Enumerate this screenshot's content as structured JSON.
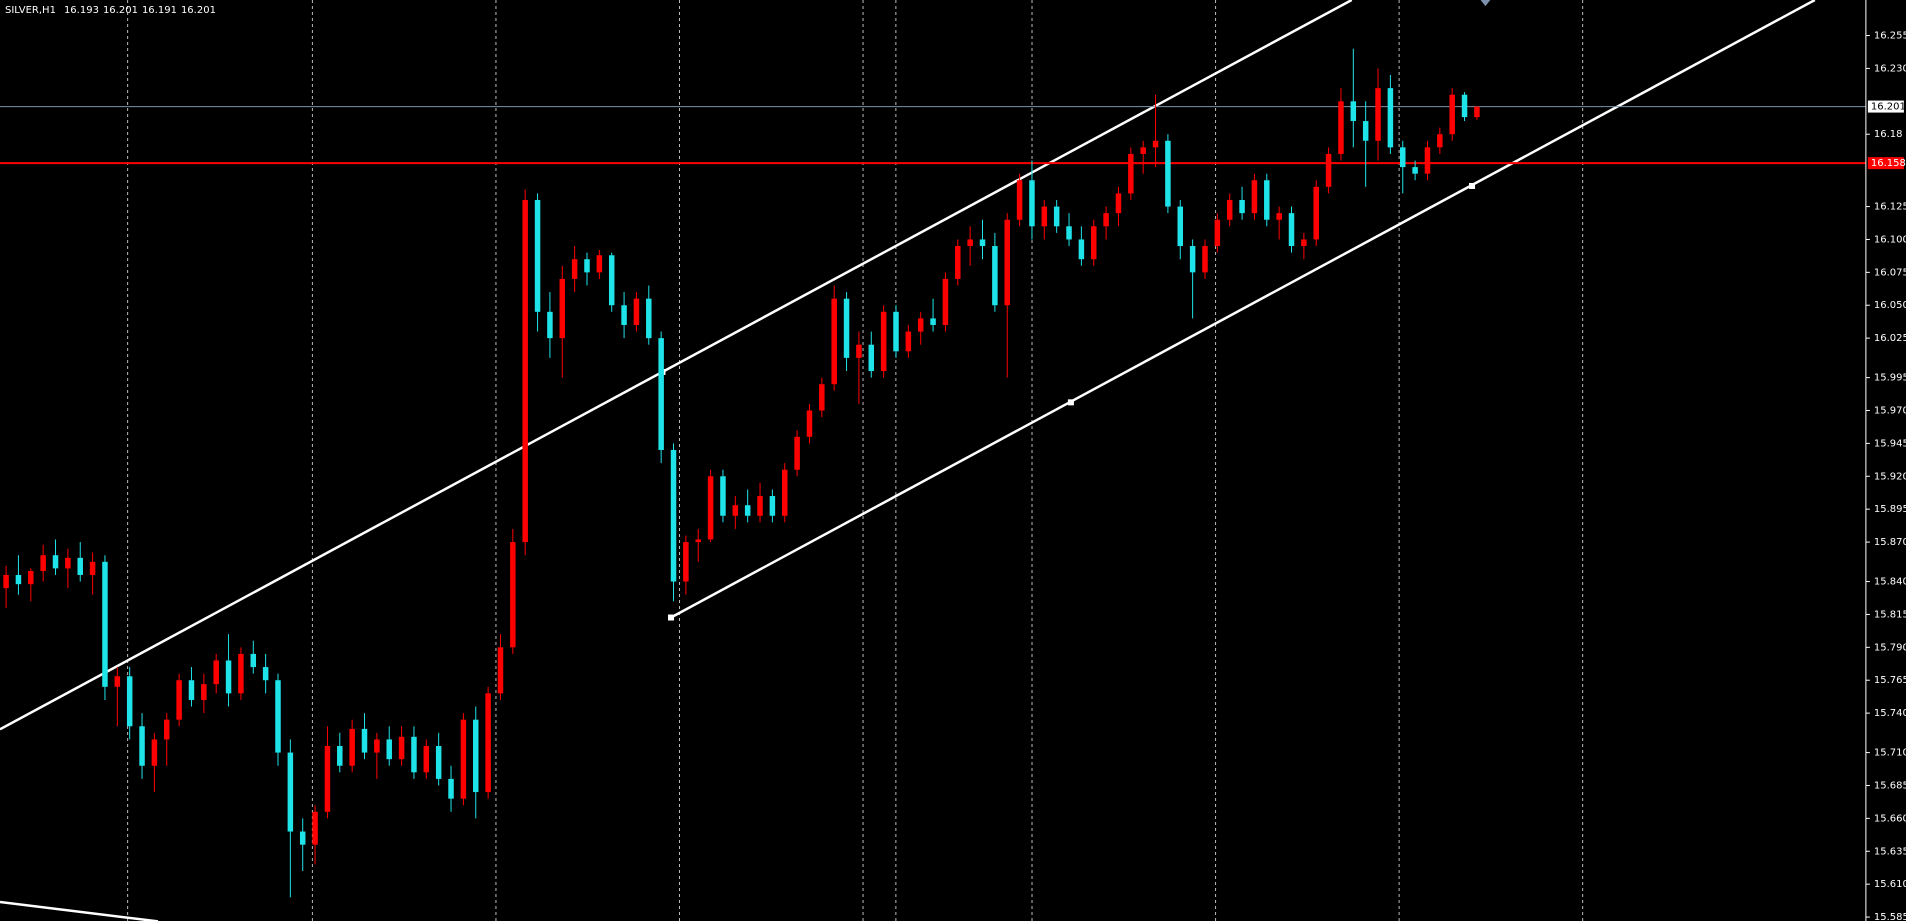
{
  "chart_data": {
    "type": "candlestick",
    "title": "SILVER,H1",
    "ohlc": [
      [
        15.835,
        15.852,
        15.82,
        15.845
      ],
      [
        15.845,
        15.86,
        15.83,
        15.838
      ],
      [
        15.838,
        15.85,
        15.825,
        15.848
      ],
      [
        15.848,
        15.868,
        15.84,
        15.86
      ],
      [
        15.86,
        15.872,
        15.845,
        15.85
      ],
      [
        15.85,
        15.865,
        15.835,
        15.858
      ],
      [
        15.858,
        15.87,
        15.84,
        15.845
      ],
      [
        15.845,
        15.862,
        15.83,
        15.855
      ],
      [
        15.855,
        15.86,
        15.75,
        15.76
      ],
      [
        15.76,
        15.775,
        15.73,
        15.768
      ],
      [
        15.768,
        15.775,
        15.72,
        15.73
      ],
      [
        15.73,
        15.74,
        15.69,
        15.7
      ],
      [
        15.7,
        15.725,
        15.68,
        15.72
      ],
      [
        15.72,
        15.74,
        15.7,
        15.735
      ],
      [
        15.735,
        15.77,
        15.73,
        15.765
      ],
      [
        15.765,
        15.775,
        15.745,
        15.75
      ],
      [
        15.75,
        15.77,
        15.74,
        15.762
      ],
      [
        15.762,
        15.785,
        15.755,
        15.78
      ],
      [
        15.78,
        15.8,
        15.745,
        15.755
      ],
      [
        15.755,
        15.79,
        15.75,
        15.785
      ],
      [
        15.785,
        15.795,
        15.77,
        15.775
      ],
      [
        15.775,
        15.785,
        15.755,
        15.765
      ],
      [
        15.765,
        15.77,
        15.7,
        15.71
      ],
      [
        15.71,
        15.72,
        15.6,
        15.65
      ],
      [
        15.65,
        15.66,
        15.62,
        15.64
      ],
      [
        15.64,
        15.67,
        15.625,
        15.665
      ],
      [
        15.665,
        15.73,
        15.66,
        15.715
      ],
      [
        15.715,
        15.725,
        15.695,
        15.7
      ],
      [
        15.7,
        15.735,
        15.695,
        15.728
      ],
      [
        15.728,
        15.74,
        15.705,
        15.71
      ],
      [
        15.71,
        15.725,
        15.69,
        15.72
      ],
      [
        15.72,
        15.73,
        15.7,
        15.705
      ],
      [
        15.705,
        15.73,
        15.7,
        15.722
      ],
      [
        15.722,
        15.73,
        15.69,
        15.695
      ],
      [
        15.695,
        15.72,
        15.69,
        15.715
      ],
      [
        15.715,
        15.725,
        15.685,
        15.69
      ],
      [
        15.69,
        15.7,
        15.665,
        15.675
      ],
      [
        15.675,
        15.74,
        15.67,
        15.735
      ],
      [
        15.735,
        15.745,
        15.66,
        15.68
      ],
      [
        15.68,
        15.76,
        15.675,
        15.755
      ],
      [
        15.755,
        15.8,
        15.75,
        15.79
      ],
      [
        15.79,
        15.88,
        15.785,
        15.87
      ],
      [
        15.87,
        16.138,
        15.86,
        16.13
      ],
      [
        16.13,
        16.135,
        16.03,
        16.045
      ],
      [
        16.045,
        16.06,
        16.01,
        16.025
      ],
      [
        16.025,
        16.08,
        15.995,
        16.07
      ],
      [
        16.07,
        16.095,
        16.06,
        16.085
      ],
      [
        16.085,
        16.09,
        16.065,
        16.075
      ],
      [
        16.075,
        16.092,
        16.07,
        16.088
      ],
      [
        16.088,
        16.09,
        16.045,
        16.05
      ],
      [
        16.05,
        16.06,
        16.025,
        16.035
      ],
      [
        16.035,
        16.06,
        16.03,
        16.055
      ],
      [
        16.055,
        16.065,
        16.02,
        16.025
      ],
      [
        16.025,
        16.03,
        15.93,
        15.94
      ],
      [
        15.94,
        15.945,
        15.825,
        15.84
      ],
      [
        15.84,
        15.875,
        15.83,
        15.87
      ],
      [
        15.87,
        15.88,
        15.855,
        15.872
      ],
      [
        15.872,
        15.925,
        15.87,
        15.92
      ],
      [
        15.92,
        15.925,
        15.885,
        15.89
      ],
      [
        15.89,
        15.905,
        15.88,
        15.898
      ],
      [
        15.898,
        15.91,
        15.885,
        15.89
      ],
      [
        15.89,
        15.915,
        15.885,
        15.905
      ],
      [
        15.905,
        15.91,
        15.885,
        15.89
      ],
      [
        15.89,
        15.93,
        15.885,
        15.925
      ],
      [
        15.925,
        15.955,
        15.92,
        15.95
      ],
      [
        15.95,
        15.975,
        15.945,
        15.97
      ],
      [
        15.97,
        15.995,
        15.965,
        15.99
      ],
      [
        15.99,
        16.065,
        15.985,
        16.055
      ],
      [
        16.055,
        16.06,
        16.0,
        16.01
      ],
      [
        16.01,
        16.03,
        15.975,
        16.02
      ],
      [
        16.02,
        16.03,
        15.995,
        16.0
      ],
      [
        16.0,
        16.05,
        15.995,
        16.045
      ],
      [
        16.045,
        16.05,
        16.01,
        16.015
      ],
      [
        16.015,
        16.035,
        16.01,
        16.03
      ],
      [
        16.03,
        16.045,
        16.02,
        16.04
      ],
      [
        16.04,
        16.055,
        16.03,
        16.035
      ],
      [
        16.035,
        16.075,
        16.03,
        16.07
      ],
      [
        16.07,
        16.1,
        16.065,
        16.095
      ],
      [
        16.095,
        16.11,
        16.08,
        16.1
      ],
      [
        16.1,
        16.115,
        16.085,
        16.095
      ],
      [
        16.095,
        16.105,
        16.045,
        16.05
      ],
      [
        16.05,
        16.12,
        15.995,
        16.115
      ],
      [
        16.115,
        16.15,
        16.11,
        16.145
      ],
      [
        16.145,
        16.16,
        16.1,
        16.11
      ],
      [
        16.11,
        16.13,
        16.1,
        16.125
      ],
      [
        16.125,
        16.13,
        16.105,
        16.11
      ],
      [
        16.11,
        16.12,
        16.095,
        16.1
      ],
      [
        16.1,
        16.11,
        16.08,
        16.085
      ],
      [
        16.085,
        16.115,
        16.08,
        16.11
      ],
      [
        16.11,
        16.125,
        16.1,
        16.12
      ],
      [
        16.12,
        16.14,
        16.11,
        16.135
      ],
      [
        16.135,
        16.17,
        16.13,
        16.165
      ],
      [
        16.165,
        16.175,
        16.15,
        16.17
      ],
      [
        16.17,
        16.21,
        16.155,
        16.175
      ],
      [
        16.175,
        16.18,
        16.12,
        16.125
      ],
      [
        16.125,
        16.13,
        16.085,
        16.095
      ],
      [
        16.095,
        16.1,
        16.04,
        16.075
      ],
      [
        16.075,
        16.1,
        16.07,
        16.095
      ],
      [
        16.095,
        16.12,
        16.09,
        16.115
      ],
      [
        16.115,
        16.135,
        16.11,
        16.13
      ],
      [
        16.13,
        16.14,
        16.115,
        16.12
      ],
      [
        16.12,
        16.15,
        16.115,
        16.145
      ],
      [
        16.145,
        16.15,
        16.11,
        16.115
      ],
      [
        16.115,
        16.125,
        16.1,
        16.12
      ],
      [
        16.12,
        16.125,
        16.09,
        16.095
      ],
      [
        16.095,
        16.105,
        16.085,
        16.1
      ],
      [
        16.1,
        16.145,
        16.095,
        16.14
      ],
      [
        16.14,
        16.17,
        16.135,
        16.165
      ],
      [
        16.165,
        16.215,
        16.16,
        16.205
      ],
      [
        16.205,
        16.245,
        16.17,
        16.19
      ],
      [
        16.19,
        16.205,
        16.14,
        16.175
      ],
      [
        16.175,
        16.23,
        16.16,
        16.215
      ],
      [
        16.215,
        16.225,
        16.165,
        16.17
      ],
      [
        16.17,
        16.175,
        16.135,
        16.155
      ],
      [
        16.155,
        16.16,
        16.145,
        16.15
      ],
      [
        16.15,
        16.175,
        16.145,
        16.17
      ],
      [
        16.17,
        16.185,
        16.165,
        16.18
      ],
      [
        16.18,
        16.215,
        16.175,
        16.21
      ],
      [
        16.21,
        16.212,
        16.19,
        16.193
      ],
      [
        16.193,
        16.201,
        16.191,
        16.201
      ]
    ],
    "bull_color": "#ff0000",
    "bear_color": "#1ee3e8",
    "bid_color": "#7d93ad",
    "ylim": [
      15.582,
      16.282
    ],
    "yticks": [
      16.255,
      {
        "value": 16.23,
        "label": "16.230"
      },
      16.18,
      16.125,
      {
        "value": 16.1,
        "label": "16.100"
      },
      16.075,
      {
        "value": 16.05,
        "label": "16.050"
      },
      16.025,
      15.995,
      {
        "value": 15.97,
        "label": "15.970"
      },
      15.945,
      {
        "value": 15.92,
        "label": "15.920"
      },
      15.895,
      {
        "value": 15.87,
        "label": "15.870"
      },
      {
        "value": 15.84,
        "label": "15.840"
      },
      15.815,
      {
        "value": 15.79,
        "label": "15.790"
      },
      15.765,
      {
        "value": 15.74,
        "label": "15.740"
      },
      {
        "value": 15.71,
        "label": "15.710"
      },
      15.685,
      {
        "value": 15.66,
        "label": "15.660"
      },
      15.635,
      {
        "value": 15.61,
        "label": "15.610"
      },
      15.585
    ],
    "grid": true,
    "levels": [
      {
        "value": 16.158,
        "color": "#ff0000"
      }
    ]
  }
}
